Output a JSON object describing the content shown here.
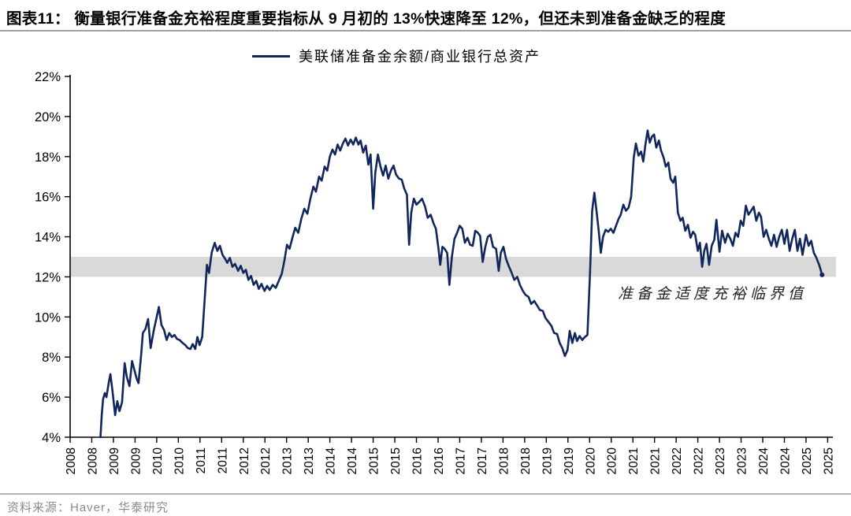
{
  "header": {
    "title": "图表11：  衡量银行准备金充裕程度重要指标从 9 月初的 13%快速降至 12%，但还未到准备金缺乏的程度"
  },
  "footer": {
    "source": "资料来源：Haver，华泰研究"
  },
  "chart_data": {
    "type": "line",
    "legend": "美联储准备金余额/商业银行总资产",
    "legend_position": "top-center",
    "grid": false,
    "line_color": "#10265c",
    "axis_color": "#000000",
    "band": {
      "from": 12,
      "to": 13,
      "color": "#d9d9d9",
      "label": "准备金适度充裕临界值"
    },
    "xlim": [
      2008.0,
      2025.62
    ],
    "ylim": [
      4,
      22
    ],
    "yticks": {
      "values": [
        4,
        6,
        8,
        10,
        12,
        14,
        16,
        18,
        20,
        22
      ],
      "labels": [
        "4%",
        "6%",
        "8%",
        "10%",
        "12%",
        "14%",
        "16%",
        "18%",
        "20%",
        "22%"
      ]
    },
    "xticks": {
      "start": 2008,
      "step": 0.5,
      "labels": [
        "2008",
        "2008",
        "2009",
        "2009",
        "2010",
        "2010",
        "2011",
        "2011",
        "2012",
        "2012",
        "2013",
        "2013",
        "2014",
        "2014",
        "2015",
        "2015",
        "2016",
        "2016",
        "2017",
        "2017",
        "2018",
        "2018",
        "2019",
        "2019",
        "2020",
        "2020",
        "2021",
        "2021",
        "2022",
        "2022",
        "2023",
        "2023",
        "2024",
        "2024",
        "2025",
        "2025"
      ]
    },
    "series": [
      {
        "name": "美联储准备金余额/商业银行总资产",
        "unit": "%",
        "points": [
          [
            2008.7,
            4.0
          ],
          [
            2008.73,
            5.1
          ],
          [
            2008.76,
            5.9
          ],
          [
            2008.8,
            6.2
          ],
          [
            2008.84,
            6.0
          ],
          [
            2008.89,
            6.7
          ],
          [
            2008.93,
            7.15
          ],
          [
            2008.98,
            6.3
          ],
          [
            2009.04,
            5.1
          ],
          [
            2009.09,
            5.8
          ],
          [
            2009.14,
            5.3
          ],
          [
            2009.2,
            5.75
          ],
          [
            2009.26,
            7.7
          ],
          [
            2009.31,
            7.0
          ],
          [
            2009.37,
            6.55
          ],
          [
            2009.43,
            7.8
          ],
          [
            2009.49,
            7.3
          ],
          [
            2009.54,
            6.9
          ],
          [
            2009.58,
            6.7
          ],
          [
            2009.64,
            8.1
          ],
          [
            2009.68,
            9.2
          ],
          [
            2009.74,
            9.4
          ],
          [
            2009.8,
            9.9
          ],
          [
            2009.86,
            8.45
          ],
          [
            2009.93,
            9.3
          ],
          [
            2010.0,
            10.0
          ],
          [
            2010.05,
            10.5
          ],
          [
            2010.11,
            9.6
          ],
          [
            2010.17,
            9.35
          ],
          [
            2010.23,
            8.85
          ],
          [
            2010.29,
            9.2
          ],
          [
            2010.35,
            9.0
          ],
          [
            2010.41,
            9.1
          ],
          [
            2010.47,
            8.9
          ],
          [
            2010.53,
            8.85
          ],
          [
            2010.6,
            8.7
          ],
          [
            2010.66,
            8.6
          ],
          [
            2010.72,
            8.45
          ],
          [
            2010.78,
            8.4
          ],
          [
            2010.83,
            8.65
          ],
          [
            2010.89,
            8.4
          ],
          [
            2010.94,
            9.0
          ],
          [
            2010.99,
            8.6
          ],
          [
            2011.05,
            9.0
          ],
          [
            2011.1,
            10.6
          ],
          [
            2011.16,
            12.6
          ],
          [
            2011.21,
            12.2
          ],
          [
            2011.27,
            13.2
          ],
          [
            2011.34,
            13.7
          ],
          [
            2011.4,
            13.3
          ],
          [
            2011.46,
            13.55
          ],
          [
            2011.52,
            13.1
          ],
          [
            2011.58,
            12.9
          ],
          [
            2011.63,
            12.7
          ],
          [
            2011.69,
            12.95
          ],
          [
            2011.75,
            12.5
          ],
          [
            2011.81,
            12.65
          ],
          [
            2011.88,
            12.3
          ],
          [
            2011.94,
            12.55
          ],
          [
            2012.0,
            12.2
          ],
          [
            2012.06,
            12.35
          ],
          [
            2012.12,
            11.85
          ],
          [
            2012.18,
            12.05
          ],
          [
            2012.24,
            11.6
          ],
          [
            2012.3,
            11.8
          ],
          [
            2012.36,
            11.4
          ],
          [
            2012.42,
            11.65
          ],
          [
            2012.49,
            11.3
          ],
          [
            2012.55,
            11.55
          ],
          [
            2012.61,
            11.35
          ],
          [
            2012.68,
            11.6
          ],
          [
            2012.75,
            11.45
          ],
          [
            2012.82,
            11.8
          ],
          [
            2012.89,
            12.15
          ],
          [
            2012.95,
            12.8
          ],
          [
            2013.01,
            13.6
          ],
          [
            2013.07,
            13.4
          ],
          [
            2013.14,
            14.0
          ],
          [
            2013.2,
            14.45
          ],
          [
            2013.27,
            14.2
          ],
          [
            2013.34,
            14.9
          ],
          [
            2013.41,
            15.4
          ],
          [
            2013.48,
            15.15
          ],
          [
            2013.55,
            15.9
          ],
          [
            2013.62,
            16.5
          ],
          [
            2013.68,
            16.25
          ],
          [
            2013.75,
            17.0
          ],
          [
            2013.81,
            16.8
          ],
          [
            2013.88,
            17.5
          ],
          [
            2013.94,
            17.3
          ],
          [
            2014.0,
            18.0
          ],
          [
            2014.06,
            18.35
          ],
          [
            2014.12,
            18.1
          ],
          [
            2014.18,
            18.6
          ],
          [
            2014.24,
            18.3
          ],
          [
            2014.3,
            18.65
          ],
          [
            2014.36,
            18.9
          ],
          [
            2014.42,
            18.55
          ],
          [
            2014.48,
            18.85
          ],
          [
            2014.54,
            18.6
          ],
          [
            2014.6,
            18.95
          ],
          [
            2014.66,
            18.6
          ],
          [
            2014.71,
            18.8
          ],
          [
            2014.77,
            18.2
          ],
          [
            2014.83,
            18.55
          ],
          [
            2014.89,
            17.6
          ],
          [
            2014.94,
            18.1
          ],
          [
            2015.0,
            15.4
          ],
          [
            2015.05,
            17.2
          ],
          [
            2015.11,
            18.1
          ],
          [
            2015.17,
            17.5
          ],
          [
            2015.23,
            17.05
          ],
          [
            2015.29,
            17.55
          ],
          [
            2015.35,
            16.9
          ],
          [
            2015.41,
            17.3
          ],
          [
            2015.47,
            17.55
          ],
          [
            2015.53,
            17.1
          ],
          [
            2015.6,
            16.9
          ],
          [
            2015.66,
            16.85
          ],
          [
            2015.72,
            16.4
          ],
          [
            2015.78,
            16.1
          ],
          [
            2015.83,
            13.6
          ],
          [
            2015.88,
            15.2
          ],
          [
            2015.94,
            15.9
          ],
          [
            2016.0,
            15.6
          ],
          [
            2016.07,
            15.75
          ],
          [
            2016.13,
            15.9
          ],
          [
            2016.2,
            15.5
          ],
          [
            2016.26,
            14.95
          ],
          [
            2016.33,
            15.1
          ],
          [
            2016.39,
            14.7
          ],
          [
            2016.45,
            14.4
          ],
          [
            2016.51,
            13.4
          ],
          [
            2016.55,
            12.6
          ],
          [
            2016.6,
            13.5
          ],
          [
            2016.65,
            13.4
          ],
          [
            2016.71,
            13.2
          ],
          [
            2016.76,
            11.6
          ],
          [
            2016.82,
            13.0
          ],
          [
            2016.88,
            13.9
          ],
          [
            2016.94,
            14.2
          ],
          [
            2017.0,
            14.55
          ],
          [
            2017.06,
            14.4
          ],
          [
            2017.12,
            13.7
          ],
          [
            2017.18,
            13.95
          ],
          [
            2017.24,
            13.6
          ],
          [
            2017.3,
            13.55
          ],
          [
            2017.36,
            14.3
          ],
          [
            2017.42,
            14.2
          ],
          [
            2017.47,
            14.05
          ],
          [
            2017.53,
            12.75
          ],
          [
            2017.59,
            13.5
          ],
          [
            2017.65,
            14.0
          ],
          [
            2017.71,
            14.1
          ],
          [
            2017.77,
            13.5
          ],
          [
            2017.84,
            13.4
          ],
          [
            2017.9,
            12.3
          ],
          [
            2017.95,
            13.2
          ],
          [
            2018.01,
            13.5
          ],
          [
            2018.07,
            12.9
          ],
          [
            2018.13,
            12.55
          ],
          [
            2018.2,
            12.2
          ],
          [
            2018.26,
            11.85
          ],
          [
            2018.33,
            12.0
          ],
          [
            2018.39,
            11.6
          ],
          [
            2018.46,
            11.3
          ],
          [
            2018.52,
            11.1
          ],
          [
            2018.59,
            11.0
          ],
          [
            2018.65,
            10.65
          ],
          [
            2018.72,
            10.8
          ],
          [
            2018.78,
            10.6
          ],
          [
            2018.85,
            10.35
          ],
          [
            2018.92,
            10.3
          ],
          [
            2018.98,
            9.95
          ],
          [
            2019.05,
            9.75
          ],
          [
            2019.12,
            9.55
          ],
          [
            2019.18,
            9.2
          ],
          [
            2019.25,
            9.15
          ],
          [
            2019.31,
            8.7
          ],
          [
            2019.37,
            8.45
          ],
          [
            2019.43,
            8.05
          ],
          [
            2019.49,
            8.35
          ],
          [
            2019.54,
            9.3
          ],
          [
            2019.6,
            8.7
          ],
          [
            2019.66,
            9.2
          ],
          [
            2019.71,
            8.8
          ],
          [
            2019.77,
            9.05
          ],
          [
            2019.83,
            8.85
          ],
          [
            2019.89,
            9.0
          ],
          [
            2019.95,
            9.1
          ],
          [
            2020.01,
            12.2
          ],
          [
            2020.06,
            15.3
          ],
          [
            2020.11,
            16.2
          ],
          [
            2020.16,
            15.3
          ],
          [
            2020.21,
            14.3
          ],
          [
            2020.26,
            13.2
          ],
          [
            2020.31,
            14.0
          ],
          [
            2020.37,
            14.35
          ],
          [
            2020.43,
            14.25
          ],
          [
            2020.49,
            14.4
          ],
          [
            2020.55,
            14.2
          ],
          [
            2020.61,
            14.55
          ],
          [
            2020.67,
            14.9
          ],
          [
            2020.72,
            15.1
          ],
          [
            2020.78,
            15.6
          ],
          [
            2020.84,
            15.3
          ],
          [
            2020.9,
            15.45
          ],
          [
            2020.96,
            16.0
          ],
          [
            2021.02,
            17.95
          ],
          [
            2021.07,
            18.65
          ],
          [
            2021.13,
            18.05
          ],
          [
            2021.19,
            18.25
          ],
          [
            2021.24,
            17.75
          ],
          [
            2021.29,
            18.6
          ],
          [
            2021.34,
            19.3
          ],
          [
            2021.39,
            18.7
          ],
          [
            2021.44,
            19.0
          ],
          [
            2021.49,
            19.1
          ],
          [
            2021.54,
            18.45
          ],
          [
            2021.6,
            18.8
          ],
          [
            2021.65,
            18.3
          ],
          [
            2021.71,
            17.95
          ],
          [
            2021.76,
            17.5
          ],
          [
            2021.82,
            17.7
          ],
          [
            2021.87,
            16.9
          ],
          [
            2021.93,
            16.7
          ],
          [
            2021.98,
            17.0
          ],
          [
            2022.04,
            15.2
          ],
          [
            2022.1,
            14.8
          ],
          [
            2022.15,
            14.95
          ],
          [
            2022.21,
            14.3
          ],
          [
            2022.27,
            14.6
          ],
          [
            2022.33,
            13.95
          ],
          [
            2022.39,
            14.25
          ],
          [
            2022.44,
            14.1
          ],
          [
            2022.5,
            13.3
          ],
          [
            2022.55,
            13.7
          ],
          [
            2022.6,
            12.5
          ],
          [
            2022.65,
            13.3
          ],
          [
            2022.7,
            13.65
          ],
          [
            2022.76,
            12.6
          ],
          [
            2022.82,
            13.55
          ],
          [
            2022.88,
            13.85
          ],
          [
            2022.93,
            14.85
          ],
          [
            2023.0,
            13.25
          ],
          [
            2023.06,
            14.3
          ],
          [
            2023.13,
            13.7
          ],
          [
            2023.19,
            14.15
          ],
          [
            2023.25,
            13.9
          ],
          [
            2023.31,
            13.55
          ],
          [
            2023.37,
            14.2
          ],
          [
            2023.43,
            14.0
          ],
          [
            2023.49,
            14.8
          ],
          [
            2023.55,
            14.55
          ],
          [
            2023.61,
            15.55
          ],
          [
            2023.67,
            15.1
          ],
          [
            2023.73,
            15.3
          ],
          [
            2023.79,
            15.5
          ],
          [
            2023.85,
            14.8
          ],
          [
            2023.91,
            15.2
          ],
          [
            2023.96,
            15.0
          ],
          [
            2024.02,
            14.0
          ],
          [
            2024.08,
            14.35
          ],
          [
            2024.14,
            13.9
          ],
          [
            2024.2,
            13.55
          ],
          [
            2024.26,
            14.1
          ],
          [
            2024.32,
            13.5
          ],
          [
            2024.38,
            14.0
          ],
          [
            2024.44,
            14.35
          ],
          [
            2024.5,
            13.65
          ],
          [
            2024.56,
            14.35
          ],
          [
            2024.62,
            13.3
          ],
          [
            2024.68,
            13.9
          ],
          [
            2024.74,
            14.35
          ],
          [
            2024.8,
            13.3
          ],
          [
            2024.86,
            13.9
          ],
          [
            2024.92,
            13.1
          ],
          [
            2025.0,
            14.1
          ],
          [
            2025.06,
            13.55
          ],
          [
            2025.12,
            13.8
          ],
          [
            2025.18,
            13.2
          ],
          [
            2025.24,
            12.95
          ],
          [
            2025.31,
            12.55
          ],
          [
            2025.37,
            12.1
          ]
        ]
      }
    ]
  }
}
